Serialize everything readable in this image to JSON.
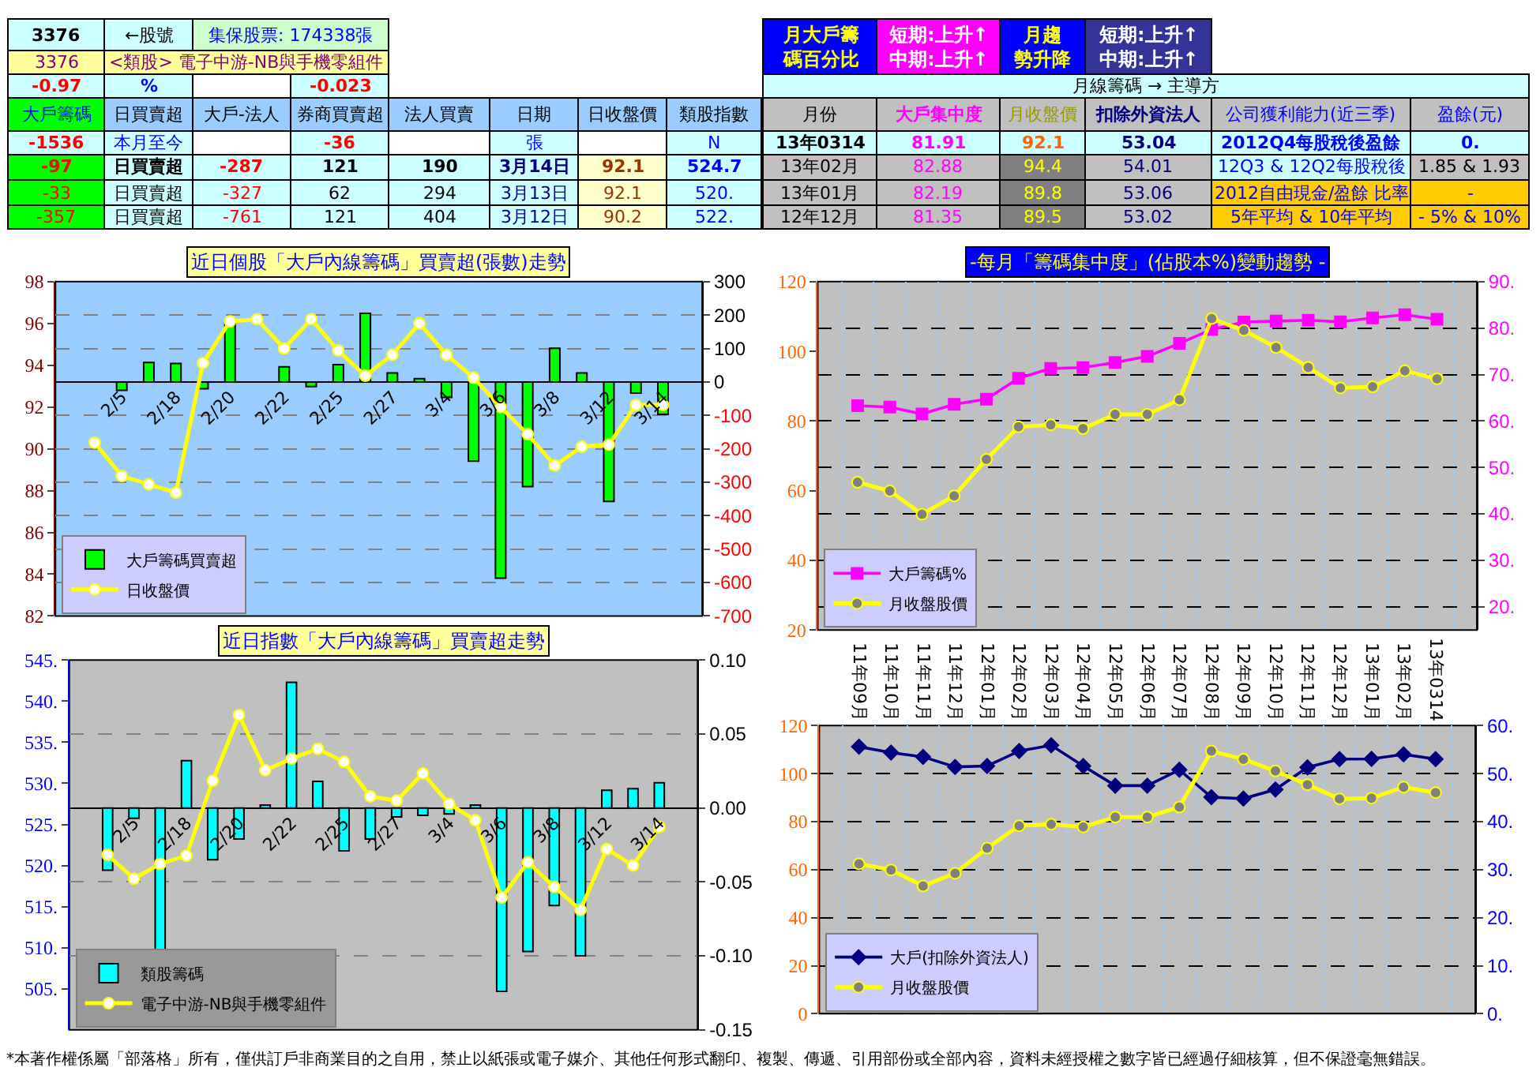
{
  "chart_data": [
    {
      "type": "other",
      "annotations": [
        "3376",
        "←股號",
        "集保股票: 174338張",
        "3376",
        "<類股> 電子中游-NB與手機零組件",
        "-0.97",
        "%",
        "-0.023",
        "大戶籌碼",
        "日買賣超",
        "大戶-法人",
        "券商買賣超",
        "法人買賣",
        "日期",
        "日收盤價",
        "類股指數",
        "-1536",
        "本月至今",
        "-36",
        "張",
        "N",
        "-97",
        "日買賣超",
        "-287",
        "121",
        "190",
        "3月14日",
        "92.1",
        "524.7",
        "-33",
        "日買賣超",
        "-327",
        "62",
        "294",
        "3月13日",
        "92.1",
        "520.",
        "-357",
        "日買賣超",
        "-761",
        "121",
        "404",
        "3月12日",
        "90.2",
        "522.",
        "月大戶籌碼百分比",
        "短期:上升↑\n中期:上升↑",
        "月趨勢升降",
        "短期:上升↑\n中期:上升↑",
        "月線籌碼 → 主導方",
        "月份",
        "大戶集中度",
        "月收盤價",
        "扣除外資法人",
        "公司獲利能力(近三季)",
        "盈餘(元)",
        "13年0314",
        "81.91",
        "92.1",
        "53.04",
        "2012Q4每股稅後盈餘",
        "0.",
        "13年02月",
        "82.88",
        "94.4",
        "54.01",
        "12Q3 & 12Q2每股稅後",
        "1.85 & 1.93",
        "13年01月",
        "82.19",
        "89.8",
        "53.06",
        "2012自由現金/盈餘 比率",
        "-",
        "12年12月",
        "81.35",
        "89.5",
        "53.02",
        "5年平均 & 10年平均",
        "- 5% & 10%",
        "*本著作權係屬「部落格」所有，僅供訂戶非商業目的之自用，禁止以紙張或電子媒介、其他任何形式翻印、複製、傳遞、引用部份或全部內容，資料未經授權之數字皆已經過仔細核算，但不保證毫無錯誤。"
      ]
    },
    {
      "type": "bar",
      "title": "近日個股「大戶內線籌碼」買賣超(張數)走勢",
      "categories": [
        null,
        "2/5",
        null,
        "2/18",
        null,
        "2/20",
        null,
        "2/22",
        null,
        "2/25",
        null,
        "2/27",
        null,
        "3/4",
        null,
        "3/6",
        null,
        "3/8",
        null,
        "3/12",
        null,
        "3/14"
      ],
      "series": [
        {
          "name": "大戶籌碼買賣超",
          "type": "bar",
          "axis": "y2",
          "color": "#00ff00",
          "values": [
            null,
            -25,
            58,
            55,
            -20,
            177,
            null,
            45,
            -14,
            52,
            205,
            27,
            10,
            -46,
            -237,
            -587,
            -313,
            101,
            27,
            -357,
            -33,
            -97
          ]
        },
        {
          "name": "日收盤價",
          "type": "line",
          "axis": "y",
          "color": "#ffff00",
          "marker": "circle",
          "values": [
            90.3,
            88.7,
            88.3,
            87.9,
            94.1,
            96.1,
            96.2,
            94.8,
            96.2,
            94.7,
            93.5,
            94.5,
            96.0,
            94.5,
            93.4,
            92.0,
            90.7,
            89.2,
            90.1,
            90.2,
            92.1,
            92.1
          ]
        }
      ],
      "ylim": [
        82,
        98
      ],
      "yticks": [
        82,
        84,
        86,
        88,
        90,
        92,
        94,
        96,
        98
      ],
      "y2lim": [
        -700,
        300
      ],
      "y2ticks": [
        -700,
        -600,
        -500,
        -400,
        -300,
        -200,
        -100,
        0,
        100,
        200,
        300
      ],
      "grid": "y",
      "legend": "bottom left"
    },
    {
      "type": "line",
      "title": "-每月「籌碼集中度」(佔股本%)變動趨勢 -",
      "categories": [
        "11年09月",
        "11年10月",
        "11年11月",
        "11年12月",
        "12年01月",
        "12年02月",
        "12年03月",
        "12年04月",
        "12年05月",
        "12年06月",
        "12年07月",
        "12年08月",
        "12年09月",
        "12年10月",
        "12年11月",
        "12年12月",
        "13年01月",
        "13年02月",
        "13年0314"
      ],
      "series": [
        {
          "name": "大戶籌碼%",
          "type": "line",
          "axis": "y2",
          "color": "#ff00ff",
          "marker": "square",
          "values": [
            63.3,
            63.0,
            61.5,
            63.6,
            64.7,
            69.2,
            71.3,
            71.5,
            72.6,
            73.9,
            76.7,
            79.7,
            81.3,
            81.5,
            81.7,
            81.35,
            82.19,
            82.88,
            81.91
          ]
        },
        {
          "name": "月收盤股價",
          "type": "line",
          "axis": "y",
          "color": "#ffff00",
          "marker": "circle",
          "values": [
            62.4,
            59.9,
            53.2,
            58.5,
            69.0,
            78.3,
            78.9,
            77.8,
            81.9,
            81.9,
            86.1,
            109.4,
            106.0,
            101.1,
            95.4,
            89.5,
            89.8,
            94.4,
            92.1
          ]
        }
      ],
      "ylim": [
        20,
        120
      ],
      "yticks": [
        20,
        40,
        60,
        80,
        100,
        120
      ],
      "y2lim": [
        15,
        90
      ],
      "y2ticks": [
        {
          "value": 20,
          "label": "20."
        },
        {
          "value": 30,
          "label": "30."
        },
        {
          "value": 40,
          "label": "40."
        },
        {
          "value": 50,
          "label": "50."
        },
        {
          "value": 60,
          "label": "60."
        },
        {
          "value": 70,
          "label": "70."
        },
        {
          "value": 80,
          "label": "80."
        },
        {
          "value": 90,
          "label": "90."
        }
      ],
      "grid": true,
      "legend": "bottom left",
      "tick_labels": "y"
    },
    {
      "type": "bar",
      "title": "近日指數「大戶內線籌碼」買賣超走勢",
      "categories": [
        null,
        "2/5",
        null,
        "2/18",
        null,
        "2/20",
        null,
        "2/22",
        null,
        "2/25",
        null,
        "2/27",
        null,
        "3/4",
        null,
        "3/6",
        null,
        "3/8",
        null,
        "3/12",
        null,
        "3/14"
      ],
      "series": [
        {
          "name": "類股籌碼",
          "type": "bar",
          "axis": "y2",
          "color": "#00ffff",
          "values": [
            -0.042,
            -0.007,
            -0.096,
            0.032,
            -0.035,
            -0.021,
            0.002,
            0.085,
            0.018,
            -0.029,
            -0.021,
            -0.006,
            -0.005,
            -0.004,
            0.002,
            -0.124,
            -0.097,
            -0.066,
            -0.1,
            0.012,
            0.013,
            0.017
          ]
        },
        {
          "name": "電子中游-NB與手機零組件",
          "type": "line",
          "axis": "y",
          "color": "#ffff00",
          "marker": "circle",
          "values": [
            521.3,
            518.4,
            520.2,
            521.2,
            530.3,
            538.3,
            531.6,
            533.0,
            534.2,
            532.6,
            528.4,
            527.9,
            531.2,
            527.5,
            525.5,
            516.1,
            520.4,
            517.4,
            514.6,
            522,
            520,
            524.7
          ]
        }
      ],
      "ylim": [
        500,
        545
      ],
      "yticks": [
        {
          "value": 505,
          "label": "505."
        },
        {
          "value": 510,
          "label": "510."
        },
        {
          "value": 515,
          "label": "515."
        },
        {
          "value": 520,
          "label": "520."
        },
        {
          "value": 525,
          "label": "525."
        },
        {
          "value": 530,
          "label": "530."
        },
        {
          "value": 535,
          "label": "535."
        },
        {
          "value": 540,
          "label": "540."
        },
        {
          "value": 545,
          "label": "545."
        }
      ],
      "y2lim": [
        -0.15,
        0.1
      ],
      "y2ticks": [
        {
          "value": -0.15,
          "label": "-0.15"
        },
        {
          "value": -0.1,
          "label": "-0.10"
        },
        {
          "value": -0.05,
          "label": "-0.05"
        },
        {
          "value": 0,
          "label": "0.00"
        },
        {
          "value": 0.05,
          "label": "0.05"
        },
        {
          "value": 0.1,
          "label": "0.10"
        }
      ],
      "grid": "y",
      "legend": "bottom left"
    },
    {
      "type": "line",
      "categories": [
        "11年09月",
        "11年10月",
        "11年11月",
        "11年12月",
        "12年01月",
        "12年02月",
        "12年03月",
        "12年04月",
        "12年05月",
        "12年06月",
        "12年07月",
        "12年08月",
        "12年09月",
        "12年10月",
        "12年11月",
        "12年12月",
        "13年01月",
        "13年02月",
        "13年0314"
      ],
      "series": [
        {
          "name": "大戶(扣除外資法人)",
          "type": "line",
          "axis": "y2",
          "color": "#000080",
          "marker": "diamond",
          "values": [
            55.6,
            54.4,
            53.5,
            51.4,
            51.6,
            54.7,
            55.9,
            51.6,
            47.5,
            47.5,
            50.8,
            45.1,
            44.8,
            46.7,
            51.3,
            53.02,
            53.06,
            54.01,
            53.04
          ]
        },
        {
          "name": "月收盤股價",
          "type": "line",
          "axis": "y",
          "color": "#ffff00",
          "marker": "circle",
          "values": [
            62.4,
            59.9,
            53.2,
            58.5,
            69.0,
            78.3,
            78.9,
            77.8,
            81.9,
            81.9,
            86.1,
            109.4,
            106.0,
            101.1,
            95.4,
            89.5,
            89.8,
            94.4,
            92.1
          ]
        }
      ],
      "ylim": [
        0,
        120
      ],
      "yticks": [
        0,
        20,
        40,
        60,
        80,
        100,
        120
      ],
      "y2lim": [
        0,
        60
      ],
      "y2ticks": [
        {
          "value": 0,
          "label": "0."
        },
        {
          "value": 10,
          "label": "10."
        },
        {
          "value": 20,
          "label": "20."
        },
        {
          "value": 30,
          "label": "30."
        },
        {
          "value": 40,
          "label": "40."
        },
        {
          "value": 50,
          "label": "50."
        },
        {
          "value": 60,
          "label": "60."
        }
      ],
      "grid": true,
      "legend": "bottom left"
    }
  ]
}
